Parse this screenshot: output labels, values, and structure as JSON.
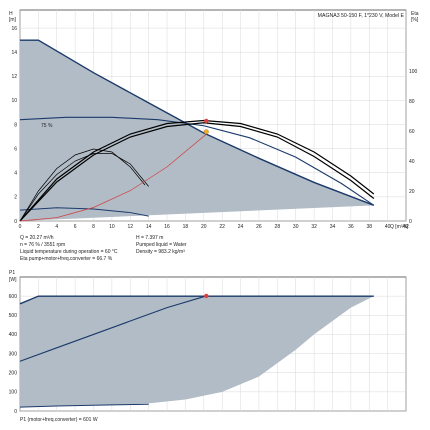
{
  "chart_data": [
    {
      "type": "line",
      "title": "MAGNA3 50-150 F, 1*230 V, Model E",
      "ylabel_left": "H\n[m]",
      "ylabel_right": "Eta\n[%]",
      "xlabel": "Q [m³/h]",
      "xlim": [
        0,
        42
      ],
      "x_ticks": [
        0,
        2,
        4,
        6,
        8,
        10,
        12,
        14,
        16,
        18,
        20,
        22,
        24,
        26,
        28,
        30,
        32,
        34,
        36,
        38,
        40,
        42
      ],
      "ylim_left": [
        0,
        16
      ],
      "y_ticks_left": [
        0,
        2,
        4,
        6,
        8,
        10,
        12,
        14,
        16
      ],
      "ylim_right": [
        0,
        100
      ],
      "y_ticks_right": [
        0,
        20,
        40,
        60,
        80,
        100
      ],
      "grid": true,
      "annotation": "75 %",
      "series": [
        {
          "role": "envelope_area",
          "x": [
            0,
            2,
            8,
            14,
            20,
            26,
            32,
            38.5,
            0
          ],
          "y": [
            15,
            15,
            12.3,
            9.8,
            7.3,
            5.2,
            3.2,
            1.3,
            0
          ]
        },
        {
          "role": "max_curve",
          "x": [
            0,
            2,
            8,
            14,
            20,
            26,
            32,
            38.5
          ],
          "y": [
            15,
            15,
            12.3,
            9.8,
            7.3,
            5.2,
            3.2,
            1.3
          ]
        },
        {
          "role": "efficiency_island",
          "x": [
            0,
            5,
            10,
            15,
            20,
            25,
            30,
            35,
            38.5
          ],
          "y": [
            8.4,
            8.6,
            8.6,
            8.4,
            7.9,
            6.9,
            5.3,
            3.1,
            1.3
          ]
        },
        {
          "role": "eta_max",
          "x": [
            0,
            4,
            8,
            12,
            16,
            20,
            24,
            28,
            32,
            36,
            38.5
          ],
          "y": [
            0,
            28,
            46,
            58,
            65,
            67,
            65,
            58,
            46,
            30,
            18
          ]
        },
        {
          "role": "eta_2",
          "x": [
            0,
            4,
            8,
            12,
            16,
            20,
            24,
            28,
            32,
            36,
            38.5
          ],
          "y": [
            0,
            26,
            44,
            56,
            63,
            65.5,
            63,
            56,
            43,
            27,
            15
          ]
        },
        {
          "role": "eta_3",
          "x": [
            0,
            2,
            4,
            6,
            8,
            10,
            12,
            14
          ],
          "y": [
            0,
            18,
            31,
            40,
            45,
            45,
            38,
            23
          ]
        },
        {
          "role": "eta_4",
          "x": [
            0,
            2,
            4,
            6,
            8,
            10,
            12,
            13.6
          ],
          "y": [
            0,
            20,
            35,
            44,
            48,
            46,
            36,
            24
          ]
        },
        {
          "role": "system_curve",
          "x": [
            0,
            4,
            8,
            12,
            16,
            20.27
          ],
          "y": [
            0,
            0.28,
            1.12,
            2.52,
            4.49,
            7.2
          ]
        },
        {
          "role": "low_curve",
          "x": [
            0,
            4,
            8,
            12,
            14
          ],
          "y": [
            0.9,
            1.1,
            1.0,
            0.7,
            0.4
          ]
        }
      ],
      "operating_point": {
        "q": 20.27,
        "h": 7.397,
        "eta_value": 66.7
      }
    },
    {
      "type": "area",
      "ylabel": "P1\n[W]",
      "xlim": [
        0,
        42
      ],
      "ylim": [
        0,
        700
      ],
      "y_ticks": [
        0,
        100,
        200,
        300,
        400,
        500,
        600
      ],
      "grid": true,
      "series": [
        {
          "role": "max_power",
          "x": [
            0,
            2,
            6,
            10,
            20,
            26,
            32,
            38.5
          ],
          "y": [
            560,
            600,
            600,
            600,
            600,
            600,
            600,
            600
          ]
        },
        {
          "role": "lower_boundary",
          "x": [
            0,
            6,
            10,
            14,
            18,
            22,
            26,
            28,
            30,
            32,
            34,
            36,
            38.5
          ],
          "y": [
            20,
            28,
            30,
            40,
            60,
            100,
            180,
            250,
            320,
            400,
            470,
            540,
            600
          ]
        },
        {
          "role": "power_line",
          "x": [
            0,
            4,
            8,
            12,
            16,
            20.27
          ],
          "y": [
            260,
            330,
            400,
            470,
            540,
            601
          ]
        },
        {
          "role": "low_power",
          "x": [
            0,
            4,
            8,
            10,
            14
          ],
          "y": [
            20,
            26,
            30,
            32,
            35
          ]
        }
      ],
      "operating_point": {
        "q": 20.27,
        "p": 601
      }
    }
  ],
  "info": {
    "line1_left": "Q = 20.27 m³/h",
    "line1_right": "H = 7.397 m",
    "line2_left": "n = 76 % / 3551 rpm",
    "line2_right": "Pumped liquid = Water",
    "line3_left": "Liquid temperature during operation = 60 °C",
    "line3_right": "Density = 983.2 kg/m³",
    "line4_left": "Eta pump+motor+freq.converter = 66.7 %"
  },
  "footer": {
    "power_text": "P1 (motor+freq.converter) = 601 W"
  },
  "colors": {
    "fill": "#b2bcc6",
    "curve": "#1b3a6b",
    "eta": "#000000",
    "system": "#d04040",
    "point": "#e04040",
    "grid": "#d8d8d8"
  }
}
